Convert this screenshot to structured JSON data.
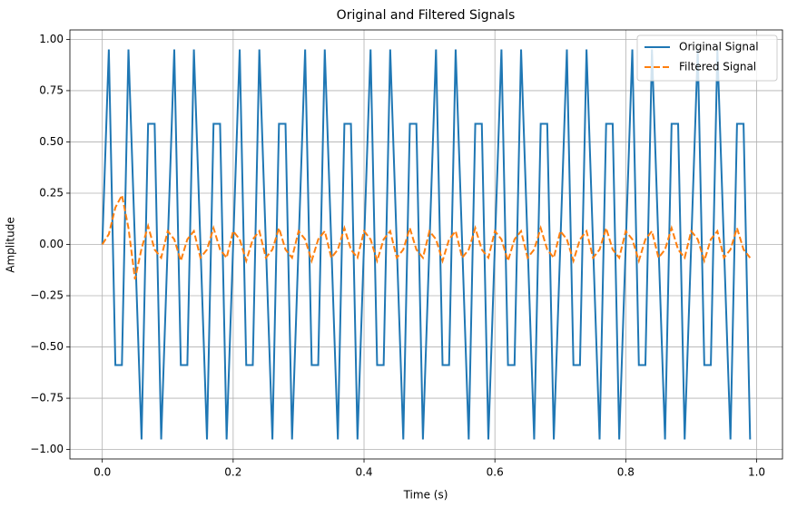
{
  "chart_data": {
    "type": "line",
    "title": "Original and Filtered Signals",
    "xlabel": "Time (s)",
    "ylabel": "Amplitude",
    "x": [
      0,
      0.01,
      0.02,
      0.03,
      0.04,
      0.05,
      0.06,
      0.07,
      0.08,
      0.09,
      0.1,
      0.11,
      0.12,
      0.13,
      0.14,
      0.15,
      0.16,
      0.17,
      0.18,
      0.19,
      0.2,
      0.21,
      0.22,
      0.23,
      0.24,
      0.25,
      0.26,
      0.27,
      0.28,
      0.29,
      0.3,
      0.31,
      0.32,
      0.33,
      0.34,
      0.35,
      0.36,
      0.37,
      0.38,
      0.39,
      0.4,
      0.41,
      0.42,
      0.43,
      0.44,
      0.45,
      0.46,
      0.47,
      0.48,
      0.49,
      0.5,
      0.51,
      0.52,
      0.53,
      0.54,
      0.55,
      0.56,
      0.57,
      0.58,
      0.59,
      0.6,
      0.61,
      0.62,
      0.63,
      0.64,
      0.65,
      0.66,
      0.67,
      0.68,
      0.69,
      0.7,
      0.71,
      0.72,
      0.73,
      0.74,
      0.75,
      0.76,
      0.77,
      0.78,
      0.79,
      0.8,
      0.81,
      0.82,
      0.83,
      0.84,
      0.85,
      0.86,
      0.87,
      0.88,
      0.89,
      0.9,
      0.91,
      0.92,
      0.93,
      0.94,
      0.95,
      0.96,
      0.97,
      0.98,
      0.99
    ],
    "series": [
      {
        "name": "Original Signal",
        "color": "#1f77b4",
        "style": "solid",
        "values": [
          0,
          0.951,
          -0.588,
          -0.588,
          0.951,
          0,
          -0.951,
          0.588,
          0.588,
          -0.951,
          0,
          0.951,
          -0.588,
          -0.588,
          0.951,
          0,
          -0.951,
          0.588,
          0.588,
          -0.951,
          0,
          0.951,
          -0.588,
          -0.588,
          0.951,
          0,
          -0.951,
          0.588,
          0.588,
          -0.951,
          0,
          0.951,
          -0.588,
          -0.588,
          0.951,
          0,
          -0.951,
          0.588,
          0.588,
          -0.951,
          0,
          0.951,
          -0.588,
          -0.588,
          0.951,
          0,
          -0.951,
          0.588,
          0.588,
          -0.951,
          0,
          0.951,
          -0.588,
          -0.588,
          0.951,
          0,
          -0.951,
          0.588,
          0.588,
          -0.951,
          0,
          0.951,
          -0.588,
          -0.588,
          0.951,
          0,
          -0.951,
          0.588,
          0.588,
          -0.951,
          0,
          0.951,
          -0.588,
          -0.588,
          0.951,
          0,
          -0.951,
          0.588,
          0.588,
          -0.951,
          0,
          0.951,
          -0.588,
          -0.588,
          0.951,
          0,
          -0.951,
          0.588,
          0.588,
          -0.951,
          0,
          0.951,
          -0.588,
          -0.588,
          0.951,
          0,
          -0.951,
          0.588,
          0.588,
          -0.951
        ]
      },
      {
        "name": "Filtered Signal",
        "color": "#ff7f0e",
        "style": "dashed",
        "values": [
          0,
          0.05,
          0.18,
          0.24,
          0.08,
          -0.17,
          -0.02,
          0.09,
          -0.025,
          -0.065,
          0.065,
          0.025,
          -0.08,
          0.025,
          0.065,
          -0.065,
          -0.025,
          0.08,
          -0.025,
          -0.065,
          0.065,
          0.025,
          -0.08,
          0.025,
          0.065,
          -0.065,
          -0.025,
          0.08,
          -0.025,
          -0.065,
          0.065,
          0.025,
          -0.08,
          0.025,
          0.065,
          -0.065,
          -0.025,
          0.08,
          -0.025,
          -0.065,
          0.065,
          0.025,
          -0.08,
          0.025,
          0.065,
          -0.065,
          -0.025,
          0.08,
          -0.025,
          -0.065,
          0.065,
          0.025,
          -0.08,
          0.025,
          0.065,
          -0.065,
          -0.025,
          0.08,
          -0.025,
          -0.065,
          0.065,
          0.025,
          -0.08,
          0.025,
          0.065,
          -0.065,
          -0.025,
          0.08,
          -0.025,
          -0.065,
          0.065,
          0.025,
          -0.08,
          0.025,
          0.065,
          -0.065,
          -0.025,
          0.08,
          -0.025,
          -0.065,
          0.065,
          0.025,
          -0.08,
          0.025,
          0.065,
          -0.065,
          -0.025,
          0.08,
          -0.025,
          -0.065,
          0.065,
          0.025,
          -0.08,
          0.025,
          0.065,
          -0.065,
          -0.025,
          0.08,
          -0.025,
          -0.065
        ]
      }
    ],
    "xlim": [
      -0.0495,
      1.0395
    ],
    "ylim": [
      -1.046,
      1.046
    ],
    "xticks": [
      {
        "value": 0,
        "label": "0.0"
      },
      0.2,
      0.4,
      0.6,
      0.8,
      {
        "value": 1,
        "label": "1.0"
      }
    ],
    "yticks": [
      {
        "value": -1,
        "label": "−1.00"
      },
      {
        "value": -0.75,
        "label": "−0.75"
      },
      {
        "value": -0.5,
        "label": "−0.50"
      },
      {
        "value": -0.25,
        "label": "−0.25"
      },
      {
        "value": 0,
        "label": "0.00"
      },
      {
        "value": 0.25,
        "label": "0.25"
      },
      {
        "value": 0.5,
        "label": "0.50"
      },
      {
        "value": 0.75,
        "label": "0.75"
      },
      {
        "value": 1,
        "label": "1.00"
      }
    ],
    "grid": true,
    "legend": "upper right"
  }
}
